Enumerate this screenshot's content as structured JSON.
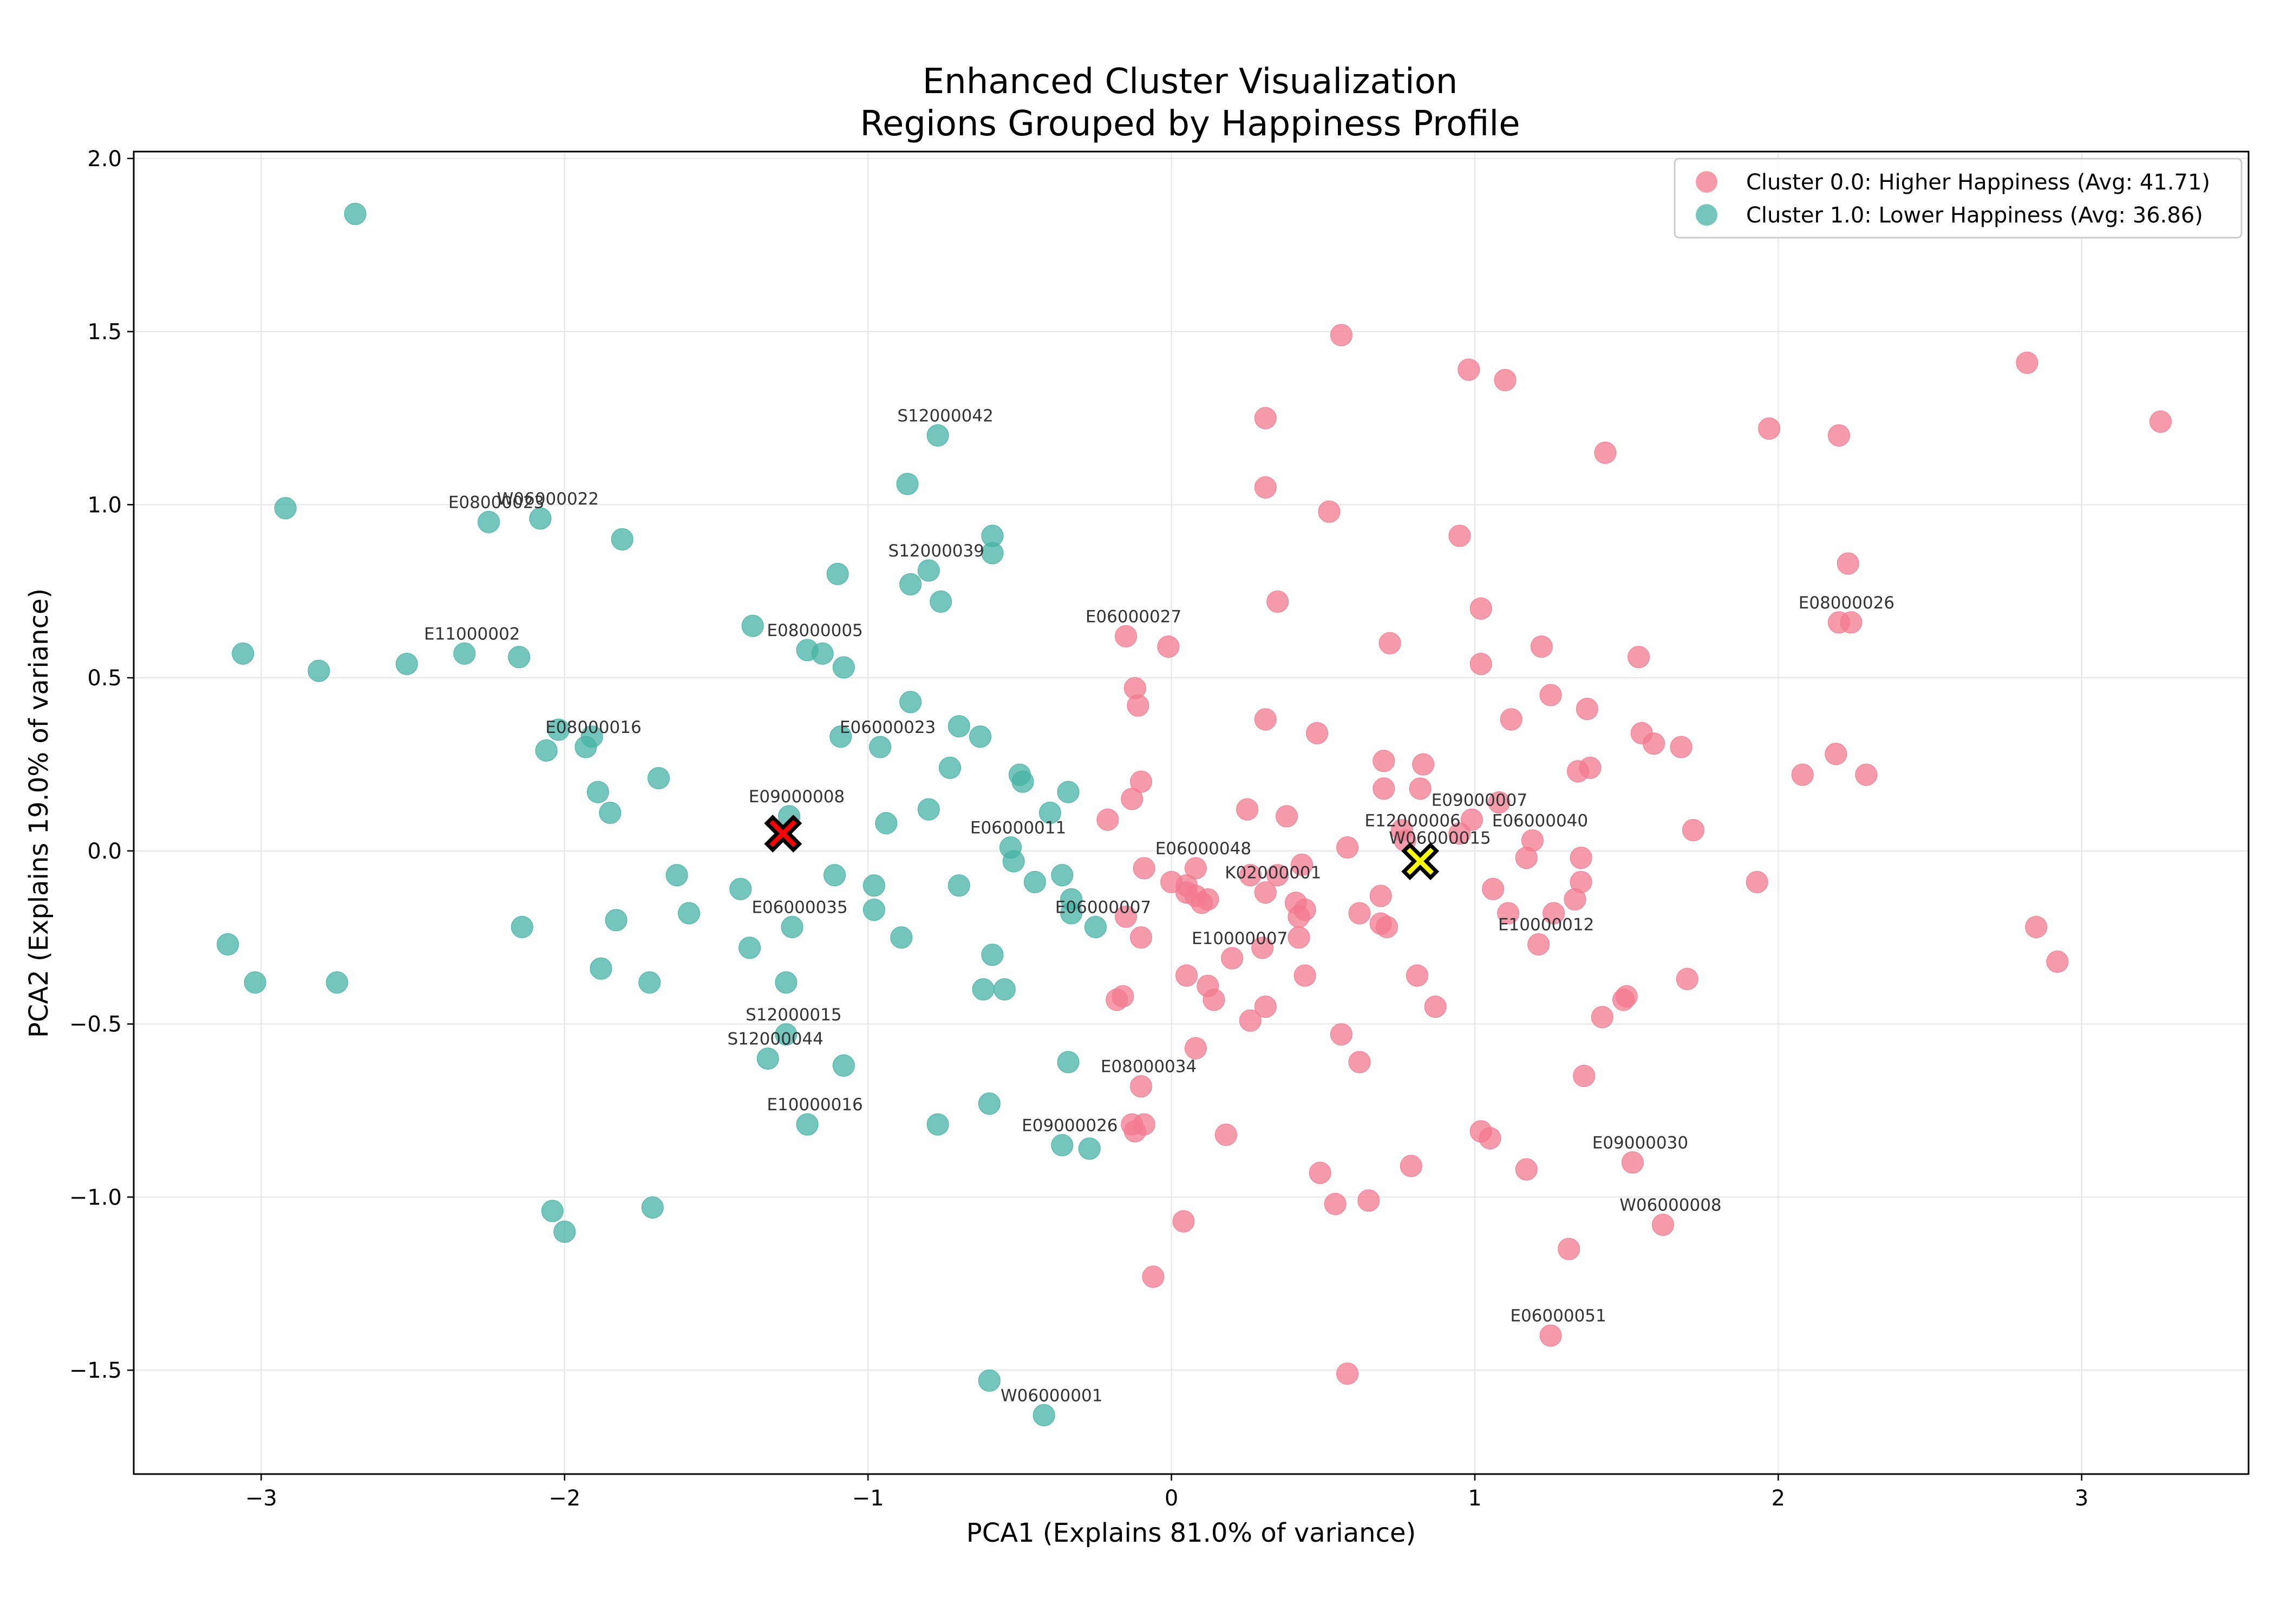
{
  "chart_data": {
    "type": "scatter",
    "title": "Enhanced Cluster Visualization",
    "subtitle": "Regions Grouped by Happiness Profile",
    "xlabel": "PCA1 (Explains 81.0% of variance)",
    "ylabel": "PCA2 (Explains 19.0% of variance)",
    "xlim": [
      -3.42,
      3.55
    ],
    "ylim": [
      -1.8,
      2.02
    ],
    "xticks": [
      -3,
      -2,
      -1,
      0,
      1,
      2,
      3
    ],
    "xtick_labels": [
      "−3",
      "−2",
      "−1",
      "0",
      "1",
      "2",
      "3"
    ],
    "yticks": [
      -1.5,
      -1.0,
      -0.5,
      0.0,
      0.5,
      1.0,
      1.5,
      2.0
    ],
    "ytick_labels": [
      "−1.5",
      "−1.0",
      "−0.5",
      "0.0",
      "0.5",
      "1.0",
      "1.5",
      "2.0"
    ],
    "grid": true,
    "legend_position": "top-right",
    "series": [
      {
        "name": "Cluster 0.0: Higher Happiness (Avg: 41.71)",
        "color": "#f37a8f",
        "points": [
          [
            0.56,
            1.49
          ],
          [
            0.98,
            1.39
          ],
          [
            1.1,
            1.36
          ],
          [
            2.82,
            1.41
          ],
          [
            3.26,
            1.24
          ],
          [
            0.31,
            1.25
          ],
          [
            1.97,
            1.22
          ],
          [
            2.2,
            1.2
          ],
          [
            1.43,
            1.15
          ],
          [
            0.31,
            1.05
          ],
          [
            0.52,
            0.98
          ],
          [
            0.95,
            0.91
          ],
          [
            2.23,
            0.83
          ],
          [
            0.35,
            0.72
          ],
          [
            1.02,
            0.7
          ],
          [
            2.2,
            0.66
          ],
          [
            2.24,
            0.66
          ],
          [
            -0.15,
            0.62
          ],
          [
            -0.01,
            0.59
          ],
          [
            0.72,
            0.6
          ],
          [
            1.22,
            0.59
          ],
          [
            1.54,
            0.56
          ],
          [
            1.02,
            0.54
          ],
          [
            -0.12,
            0.47
          ],
          [
            1.25,
            0.45
          ],
          [
            -0.11,
            0.42
          ],
          [
            1.37,
            0.41
          ],
          [
            1.12,
            0.38
          ],
          [
            0.31,
            0.38
          ],
          [
            0.48,
            0.34
          ],
          [
            1.55,
            0.34
          ],
          [
            1.59,
            0.31
          ],
          [
            1.68,
            0.3
          ],
          [
            2.19,
            0.28
          ],
          [
            0.7,
            0.26
          ],
          [
            0.83,
            0.25
          ],
          [
            1.38,
            0.24
          ],
          [
            1.34,
            0.23
          ],
          [
            2.08,
            0.22
          ],
          [
            2.29,
            0.22
          ],
          [
            -0.1,
            0.2
          ],
          [
            0.7,
            0.18
          ],
          [
            0.82,
            0.18
          ],
          [
            -0.13,
            0.15
          ],
          [
            1.08,
            0.14
          ],
          [
            0.25,
            0.12
          ],
          [
            0.38,
            0.1
          ],
          [
            -0.21,
            0.09
          ],
          [
            0.99,
            0.09
          ],
          [
            1.72,
            0.06
          ],
          [
            0.76,
            0.06
          ],
          [
            0.95,
            0.05
          ],
          [
            0.58,
            0.01
          ],
          [
            0.77,
            0.03
          ],
          [
            1.19,
            0.03
          ],
          [
            1.35,
            -0.02
          ],
          [
            1.17,
            -0.02
          ],
          [
            0.43,
            -0.04
          ],
          [
            -0.09,
            -0.05
          ],
          [
            0.08,
            -0.05
          ],
          [
            0.26,
            -0.07
          ],
          [
            0.35,
            -0.07
          ],
          [
            0.0,
            -0.09
          ],
          [
            1.35,
            -0.09
          ],
          [
            1.93,
            -0.09
          ],
          [
            0.05,
            -0.1
          ],
          [
            1.06,
            -0.11
          ],
          [
            0.05,
            -0.12
          ],
          [
            0.08,
            -0.13
          ],
          [
            0.31,
            -0.12
          ],
          [
            0.69,
            -0.13
          ],
          [
            0.12,
            -0.14
          ],
          [
            1.33,
            -0.14
          ],
          [
            0.1,
            -0.15
          ],
          [
            0.41,
            -0.15
          ],
          [
            0.44,
            -0.17
          ],
          [
            1.11,
            -0.18
          ],
          [
            1.26,
            -0.18
          ],
          [
            0.62,
            -0.18
          ],
          [
            -0.15,
            -0.19
          ],
          [
            0.42,
            -0.19
          ],
          [
            0.69,
            -0.21
          ],
          [
            0.71,
            -0.22
          ],
          [
            2.85,
            -0.22
          ],
          [
            -0.1,
            -0.25
          ],
          [
            0.42,
            -0.25
          ],
          [
            1.21,
            -0.27
          ],
          [
            0.3,
            -0.28
          ],
          [
            0.2,
            -0.31
          ],
          [
            2.92,
            -0.32
          ],
          [
            0.05,
            -0.36
          ],
          [
            0.44,
            -0.36
          ],
          [
            0.81,
            -0.36
          ],
          [
            1.7,
            -0.37
          ],
          [
            0.12,
            -0.39
          ],
          [
            -0.16,
            -0.42
          ],
          [
            -0.18,
            -0.43
          ],
          [
            0.14,
            -0.43
          ],
          [
            1.5,
            -0.42
          ],
          [
            1.49,
            -0.43
          ],
          [
            0.87,
            -0.45
          ],
          [
            0.31,
            -0.45
          ],
          [
            1.42,
            -0.48
          ],
          [
            0.26,
            -0.49
          ],
          [
            0.56,
            -0.53
          ],
          [
            0.08,
            -0.57
          ],
          [
            0.62,
            -0.61
          ],
          [
            1.36,
            -0.65
          ],
          [
            -0.1,
            -0.68
          ],
          [
            -0.09,
            -0.79
          ],
          [
            -0.13,
            -0.79
          ],
          [
            -0.12,
            -0.81
          ],
          [
            0.18,
            -0.82
          ],
          [
            1.02,
            -0.81
          ],
          [
            1.05,
            -0.83
          ],
          [
            1.52,
            -0.9
          ],
          [
            0.79,
            -0.91
          ],
          [
            1.17,
            -0.92
          ],
          [
            0.49,
            -0.93
          ],
          [
            0.54,
            -1.02
          ],
          [
            0.65,
            -1.01
          ],
          [
            1.62,
            -1.08
          ],
          [
            0.04,
            -1.07
          ],
          [
            1.31,
            -1.15
          ],
          [
            -0.06,
            -1.23
          ],
          [
            1.25,
            -1.4
          ],
          [
            0.58,
            -1.51
          ]
        ]
      },
      {
        "name": "Cluster 1.0: Lower Happiness (Avg: 36.86)",
        "color": "#45b3a6",
        "points": [
          [
            -2.69,
            1.84
          ],
          [
            -2.92,
            0.99
          ],
          [
            -2.25,
            0.95
          ],
          [
            -2.08,
            0.96
          ],
          [
            -1.81,
            0.9
          ],
          [
            -0.77,
            1.2
          ],
          [
            -0.87,
            1.06
          ],
          [
            -0.59,
            0.91
          ],
          [
            -0.59,
            0.86
          ],
          [
            -0.8,
            0.81
          ],
          [
            -0.86,
            0.77
          ],
          [
            -1.1,
            0.8
          ],
          [
            -0.76,
            0.72
          ],
          [
            -1.38,
            0.65
          ],
          [
            -3.06,
            0.57
          ],
          [
            -2.81,
            0.52
          ],
          [
            -2.52,
            0.54
          ],
          [
            -2.33,
            0.57
          ],
          [
            -2.15,
            0.56
          ],
          [
            -1.2,
            0.58
          ],
          [
            -1.15,
            0.57
          ],
          [
            -1.08,
            0.53
          ],
          [
            -0.86,
            0.43
          ],
          [
            -0.7,
            0.36
          ],
          [
            -0.63,
            0.33
          ],
          [
            -1.09,
            0.33
          ],
          [
            -2.02,
            0.35
          ],
          [
            -1.91,
            0.33
          ],
          [
            -2.06,
            0.29
          ],
          [
            -1.93,
            0.3
          ],
          [
            -0.96,
            0.3
          ],
          [
            -0.73,
            0.24
          ],
          [
            -0.5,
            0.22
          ],
          [
            -1.69,
            0.21
          ],
          [
            -0.49,
            0.2
          ],
          [
            -0.34,
            0.17
          ],
          [
            -1.89,
            0.17
          ],
          [
            -1.85,
            0.11
          ],
          [
            -0.8,
            0.12
          ],
          [
            -0.4,
            0.11
          ],
          [
            -1.26,
            0.1
          ],
          [
            -0.94,
            0.08
          ],
          [
            -0.53,
            0.01
          ],
          [
            -0.52,
            -0.03
          ],
          [
            -1.63,
            -0.07
          ],
          [
            -1.11,
            -0.07
          ],
          [
            -0.36,
            -0.07
          ],
          [
            -0.45,
            -0.09
          ],
          [
            -0.98,
            -0.1
          ],
          [
            -0.7,
            -0.1
          ],
          [
            -1.42,
            -0.11
          ],
          [
            -0.33,
            -0.14
          ],
          [
            -0.98,
            -0.17
          ],
          [
            -0.33,
            -0.18
          ],
          [
            -1.59,
            -0.18
          ],
          [
            -1.83,
            -0.2
          ],
          [
            -2.14,
            -0.22
          ],
          [
            -1.25,
            -0.22
          ],
          [
            -0.25,
            -0.22
          ],
          [
            -0.89,
            -0.25
          ],
          [
            -3.11,
            -0.27
          ],
          [
            -1.39,
            -0.28
          ],
          [
            -0.59,
            -0.3
          ],
          [
            -1.88,
            -0.34
          ],
          [
            -3.02,
            -0.38
          ],
          [
            -2.75,
            -0.38
          ],
          [
            -1.72,
            -0.38
          ],
          [
            -1.27,
            -0.38
          ],
          [
            -0.62,
            -0.4
          ],
          [
            -0.55,
            -0.4
          ],
          [
            -1.27,
            -0.53
          ],
          [
            -1.33,
            -0.6
          ],
          [
            -1.08,
            -0.62
          ],
          [
            -0.34,
            -0.61
          ],
          [
            -0.6,
            -0.73
          ],
          [
            -1.2,
            -0.79
          ],
          [
            -0.77,
            -0.79
          ],
          [
            -0.36,
            -0.85
          ],
          [
            -0.27,
            -0.86
          ],
          [
            -2.04,
            -1.04
          ],
          [
            -1.71,
            -1.03
          ],
          [
            -2.0,
            -1.1
          ],
          [
            -0.6,
            -1.53
          ],
          [
            -0.42,
            -1.63
          ]
        ]
      }
    ],
    "centroids": [
      {
        "x": -1.28,
        "y": 0.05,
        "color": "#ff0000"
      },
      {
        "x": 0.82,
        "y": -0.03,
        "color": "#ffff00"
      }
    ],
    "annotations": [
      {
        "text": "S12000042",
        "x": -0.77,
        "y": 1.2
      },
      {
        "text": "W06000022",
        "x": -2.08,
        "y": 0.96
      },
      {
        "text": "E08000023",
        "x": -2.25,
        "y": 0.95
      },
      {
        "text": "S12000039",
        "x": -0.8,
        "y": 0.81
      },
      {
        "text": "E06000027",
        "x": -0.15,
        "y": 0.62
      },
      {
        "text": "E08000026",
        "x": 2.2,
        "y": 0.66
      },
      {
        "text": "E11000002",
        "x": -2.33,
        "y": 0.57
      },
      {
        "text": "E08000005",
        "x": -1.2,
        "y": 0.58
      },
      {
        "text": "E06000023",
        "x": -0.96,
        "y": 0.3
      },
      {
        "text": "E08000016",
        "x": -1.93,
        "y": 0.3
      },
      {
        "text": "E09000007",
        "x": 0.99,
        "y": 0.09
      },
      {
        "text": "E12000006",
        "x": 0.77,
        "y": 0.03
      },
      {
        "text": "E06000040",
        "x": 1.19,
        "y": 0.03
      },
      {
        "text": "E06000048",
        "x": 0.08,
        "y": -0.05
      },
      {
        "text": "E06000011",
        "x": -0.53,
        "y": 0.01
      },
      {
        "text": "E09000008",
        "x": -1.26,
        "y": 0.1
      },
      {
        "text": "W06000015",
        "x": 0.86,
        "y": -0.02
      },
      {
        "text": "K02000001",
        "x": 0.31,
        "y": -0.12
      },
      {
        "text": "E06000035",
        "x": -1.25,
        "y": -0.22
      },
      {
        "text": "E06000007",
        "x": -0.25,
        "y": -0.22
      },
      {
        "text": "E10000012",
        "x": 1.21,
        "y": -0.27
      },
      {
        "text": "E10000007",
        "x": 0.2,
        "y": -0.31
      },
      {
        "text": "S12000015",
        "x": -1.27,
        "y": -0.53
      },
      {
        "text": "S12000044",
        "x": -1.33,
        "y": -0.6
      },
      {
        "text": "E08000034",
        "x": -0.1,
        "y": -0.68
      },
      {
        "text": "E10000016",
        "x": -1.2,
        "y": -0.79
      },
      {
        "text": "E09000026",
        "x": -0.36,
        "y": -0.85
      },
      {
        "text": "E09000030",
        "x": 1.52,
        "y": -0.9
      },
      {
        "text": "W06000008",
        "x": 1.62,
        "y": -1.08
      },
      {
        "text": "E06000051",
        "x": 1.25,
        "y": -1.4
      },
      {
        "text": "W06000001",
        "x": -0.42,
        "y": -1.63
      }
    ]
  }
}
